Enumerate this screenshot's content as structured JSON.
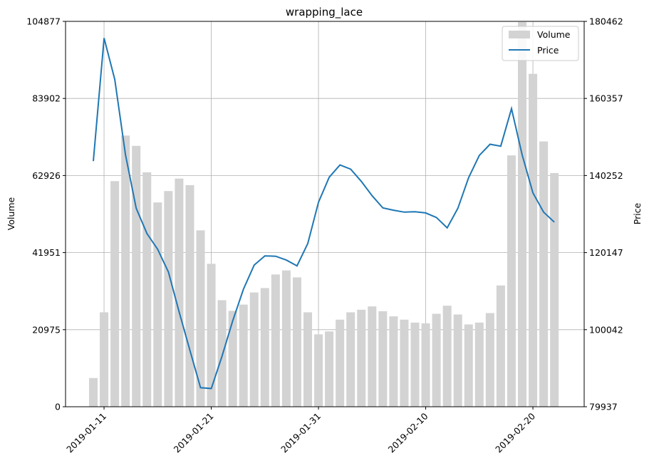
{
  "chart_data": {
    "type": "bar+line",
    "title": "wrapping_lace",
    "xlabel": "",
    "y_left_label": "Volume",
    "y_right_label": "Price",
    "x_start": "2019-01-10",
    "x_tick_labels": [
      "2019-01-11",
      "2019-01-21",
      "2019-01-31",
      "2019-02-10",
      "2019-02-20"
    ],
    "y_left_ticks": [
      "0",
      "20975",
      "41951",
      "62926",
      "83902",
      "104877"
    ],
    "y_right_ticks": [
      "79937",
      "100042",
      "120147",
      "140252",
      "160357",
      "180462"
    ],
    "y_left_lim": [
      0,
      104877
    ],
    "y_right_lim": [
      79937,
      180462
    ],
    "grid": true,
    "legend_position": "top-right",
    "series": [
      {
        "name": "Volume",
        "type": "bar",
        "color": "#d3d3d3",
        "values": [
          7800,
          25700,
          61400,
          73800,
          71000,
          63800,
          55600,
          58700,
          62100,
          60300,
          48000,
          38900,
          29000,
          26100,
          27800,
          31100,
          32300,
          36000,
          37100,
          35200,
          25700,
          19700,
          20500,
          23700,
          25700,
          26400,
          27300,
          26000,
          24600,
          23700,
          22900,
          22700,
          25300,
          27500,
          25100,
          22400,
          22900,
          25500,
          33000,
          68400,
          104700,
          90600,
          72200,
          63600
        ]
      },
      {
        "name": "Price",
        "type": "line",
        "color": "#1f77b4",
        "values": [
          144000,
          176100,
          165300,
          145600,
          131700,
          125100,
          121000,
          115100,
          104700,
          94700,
          84900,
          84700,
          93100,
          102300,
          110600,
          116900,
          119300,
          119200,
          118200,
          116700,
          122500,
          133300,
          139800,
          143000,
          141900,
          138700,
          135000,
          131800,
          131200,
          130700,
          130800,
          130500,
          129300,
          126600,
          131700,
          139700,
          145500,
          148400,
          147900,
          157700,
          145600,
          135700,
          130700,
          128100
        ]
      }
    ]
  }
}
